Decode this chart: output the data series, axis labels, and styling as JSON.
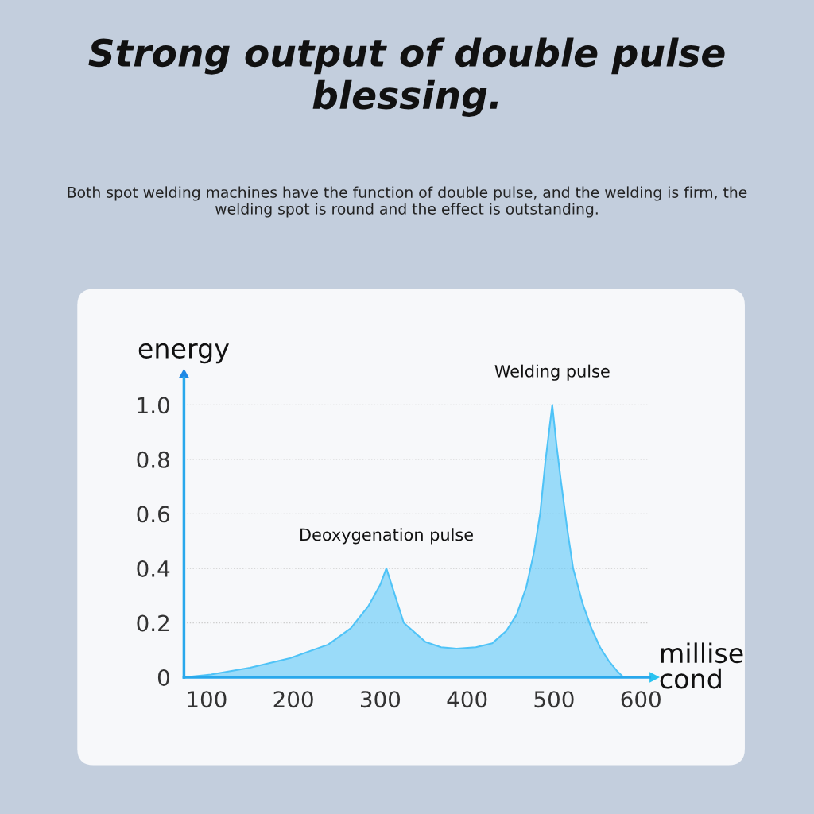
{
  "chart_data": {
    "type": "area",
    "title": "Strong output of double pulse blessing.",
    "subtitle": "Both spot welding machines have the function of double pulse, and the welding is firm, the welding spot is round and the effect is outstanding.",
    "xlabel": "millise\ncond",
    "ylabel": "energy",
    "x": [
      74,
      105,
      150,
      196,
      240,
      266,
      286,
      300,
      307,
      315,
      327,
      352,
      370,
      388,
      410,
      429,
      445,
      457,
      468,
      477,
      484,
      490,
      498,
      503,
      508,
      515,
      522,
      533,
      543,
      553,
      563,
      572,
      580
    ],
    "series": [
      {
        "color": "#4fc3f7",
        "values": [
          0.0,
          0.01,
          0.035,
          0.07,
          0.12,
          0.18,
          0.26,
          0.34,
          0.4,
          0.32,
          0.2,
          0.13,
          0.11,
          0.105,
          0.11,
          0.125,
          0.17,
          0.23,
          0.33,
          0.46,
          0.6,
          0.79,
          1.0,
          0.85,
          0.72,
          0.55,
          0.4,
          0.27,
          0.18,
          0.11,
          0.06,
          0.025,
          0.0
        ]
      }
    ],
    "xlim": [
      74,
      610
    ],
    "ylim": [
      0,
      1.1
    ],
    "xticks": [
      100,
      200,
      300,
      400,
      500,
      600
    ],
    "yticks": [
      0,
      0.2,
      0.4,
      0.6,
      0.8,
      {
        "value": 1.0,
        "label": "1.0"
      }
    ],
    "grid": "y",
    "annotations": [
      {
        "text": "Deoxygenation pulse",
        "x": 307,
        "y": 0.4
      },
      {
        "text": "Welding pulse",
        "x": 498,
        "y": 1.0
      }
    ]
  }
}
